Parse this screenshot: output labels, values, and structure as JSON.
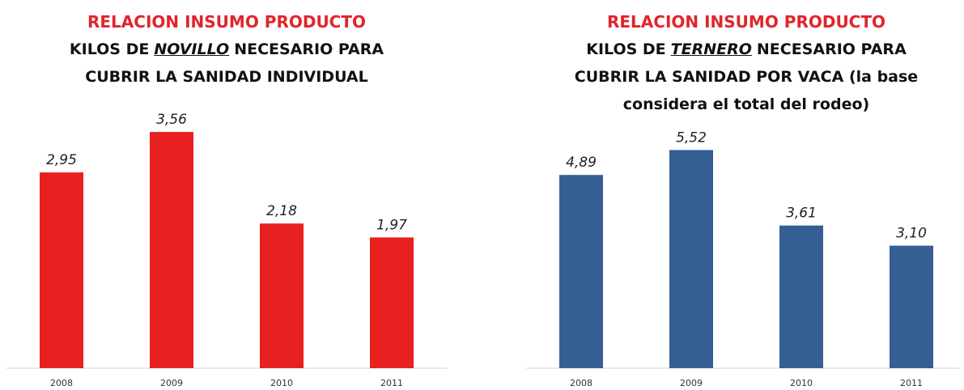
{
  "chart_data": [
    {
      "type": "bar",
      "title": "RELACION INSUMO PRODUCTO",
      "subtitle_start": "KILOS DE",
      "subtitle_highlight": "NOVILLO",
      "subtitle_end": "NECESARIO PARA",
      "subtitle_lines": [
        "CUBRIR LA SANIDAD INDIVIDUAL"
      ],
      "categories": [
        "2008",
        "2009",
        "2010",
        "2011"
      ],
      "values": [
        2.95,
        3.56,
        2.18,
        1.97
      ],
      "value_labels": [
        "2,95",
        "3,56",
        "2,18",
        "1,97"
      ],
      "color": "#e8201f",
      "ylim": [
        0,
        4
      ]
    },
    {
      "type": "bar",
      "title": "RELACION INSUMO PRODUCTO",
      "subtitle_start": "KILOS DE",
      "subtitle_highlight": "TERNERO",
      "subtitle_end": "NECESARIO PARA",
      "subtitle_lines": [
        "CUBRIR LA SANIDAD POR VACA (la base",
        "considera el total del rodeo)"
      ],
      "categories": [
        "2008",
        "2009",
        "2010",
        "2011"
      ],
      "values": [
        4.89,
        5.52,
        3.61,
        3.1
      ],
      "value_labels": [
        "4,89",
        "5,52",
        "3,61",
        "3,10"
      ],
      "color": "#355e92",
      "ylim": [
        0,
        6
      ]
    }
  ]
}
